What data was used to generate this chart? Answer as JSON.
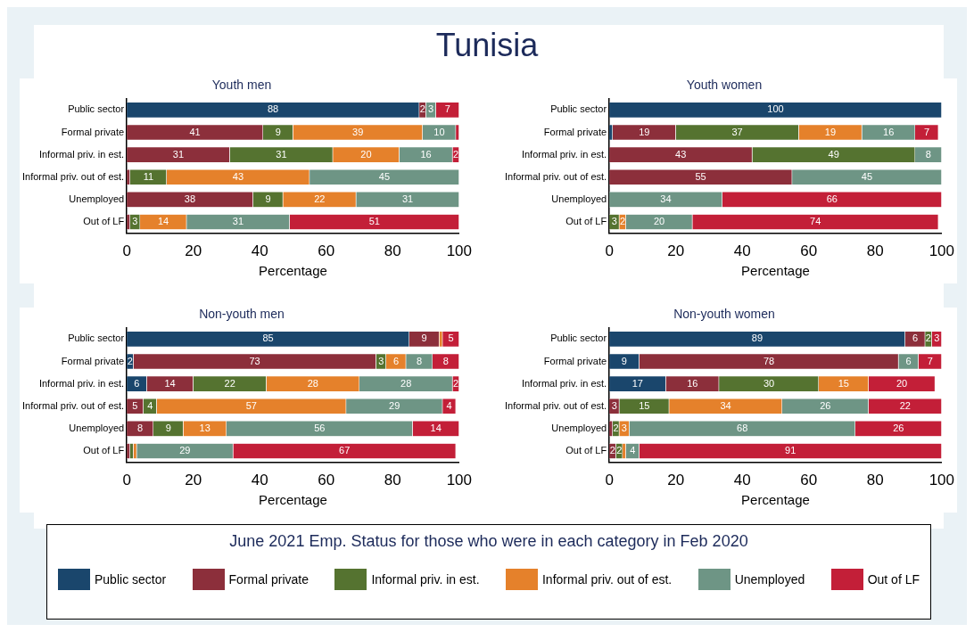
{
  "chart_data": [
    {
      "type": "bar",
      "orientation": "horizontal",
      "stacked": true,
      "title": "Youth men",
      "annotations": [
        "Tunisia"
      ],
      "xlabel": "Percentage",
      "legend": "bottom",
      "legend_title": "June 2021 Emp. Status for those who were in each category in Feb 2020",
      "grid": false,
      "xlim": [
        0,
        100
      ],
      "xticks": [
        0,
        20,
        40,
        60,
        80,
        100
      ],
      "categories": [
        "Public sector",
        "Formal private",
        "Informal priv. in est.",
        "Informal priv. out of est.",
        "Unemployed",
        "Out of LF"
      ],
      "series": [
        {
          "name": "Public sector",
          "color": "#1a466c",
          "values": [
            88,
            null,
            null,
            null,
            null,
            null
          ],
          "value_labels": [
            "88",
            null,
            null,
            null,
            null,
            null
          ]
        },
        {
          "name": "Formal private",
          "color": "#8c2f3b",
          "values": [
            2,
            41,
            31,
            1,
            38,
            1
          ],
          "value_labels": [
            "2",
            "41",
            "31",
            null,
            "38",
            null
          ]
        },
        {
          "name": "Informal priv. in est.",
          "color": "#557330",
          "values": [
            null,
            9,
            31,
            11,
            9,
            3
          ],
          "value_labels": [
            null,
            "9",
            "31",
            "11",
            "9",
            "3"
          ]
        },
        {
          "name": "Informal priv. out of est.",
          "color": "#e5812b",
          "values": [
            null,
            39,
            20,
            43,
            22,
            14
          ],
          "value_labels": [
            null,
            "39",
            "20",
            "43",
            "22",
            "14"
          ]
        },
        {
          "name": "Unemployed",
          "color": "#6e9585",
          "values": [
            3,
            10,
            16,
            45,
            31,
            31
          ],
          "value_labels": [
            "3",
            "10",
            "16",
            "45",
            "31",
            "31"
          ]
        },
        {
          "name": "Out of LF",
          "color": "#c31f38",
          "values": [
            7,
            1,
            2,
            null,
            null,
            51
          ],
          "value_labels": [
            "7",
            null,
            "2",
            null,
            null,
            "51"
          ]
        }
      ]
    },
    {
      "type": "bar",
      "orientation": "horizontal",
      "stacked": true,
      "title": "Youth women",
      "xlabel": "Percentage",
      "grid": false,
      "xlim": [
        0,
        100
      ],
      "xticks": [
        0,
        20,
        40,
        60,
        80,
        100
      ],
      "categories": [
        "Public sector",
        "Formal private",
        "Informal priv. in est.",
        "Informal priv. out of est.",
        "Unemployed",
        "Out of LF"
      ],
      "series": [
        {
          "color": "#1a466c",
          "values": [
            100,
            1,
            null,
            null,
            null,
            null
          ],
          "value_labels": [
            "100",
            null,
            null,
            null,
            null,
            null
          ]
        },
        {
          "color": "#8c2f3b",
          "values": [
            null,
            19,
            43,
            55,
            null,
            null
          ],
          "value_labels": [
            null,
            "19",
            "43",
            "55",
            null,
            null
          ]
        },
        {
          "color": "#557330",
          "values": [
            null,
            37,
            49,
            null,
            null,
            3
          ],
          "value_labels": [
            null,
            "37",
            "49",
            null,
            null,
            "3"
          ]
        },
        {
          "color": "#e5812b",
          "values": [
            null,
            19,
            null,
            null,
            null,
            2
          ],
          "value_labels": [
            null,
            "19",
            null,
            null,
            null,
            "2"
          ]
        },
        {
          "color": "#6e9585",
          "values": [
            null,
            16,
            8,
            45,
            34,
            20
          ],
          "value_labels": [
            null,
            "16",
            "8",
            "45",
            "34",
            "20"
          ]
        },
        {
          "color": "#c31f38",
          "values": [
            null,
            7,
            null,
            null,
            66,
            74
          ],
          "value_labels": [
            null,
            "7",
            null,
            null,
            "66",
            "74"
          ]
        }
      ]
    },
    {
      "type": "bar",
      "orientation": "horizontal",
      "stacked": true,
      "title": "Non-youth men",
      "xlabel": "Percentage",
      "grid": false,
      "xlim": [
        0,
        100
      ],
      "xticks": [
        0,
        20,
        40,
        60,
        80,
        100
      ],
      "categories": [
        "Public sector",
        "Formal private",
        "Informal priv. in est.",
        "Informal priv. out of est.",
        "Unemployed",
        "Out of LF"
      ],
      "series": [
        {
          "color": "#1a466c",
          "values": [
            85,
            2,
            6,
            null,
            null,
            null
          ],
          "value_labels": [
            "85",
            "2",
            "6",
            null,
            null,
            null
          ]
        },
        {
          "color": "#8c2f3b",
          "values": [
            9,
            73,
            14,
            5,
            8,
            1
          ],
          "value_labels": [
            "9",
            "73",
            "14",
            "5",
            "8",
            null
          ]
        },
        {
          "color": "#557330",
          "values": [
            null,
            3,
            22,
            4,
            9,
            1
          ],
          "value_labels": [
            null,
            "3",
            "22",
            "4",
            "9",
            null
          ]
        },
        {
          "color": "#e5812b",
          "values": [
            1,
            6,
            28,
            57,
            13,
            1
          ],
          "value_labels": [
            null,
            "6",
            "28",
            "57",
            "13",
            null
          ]
        },
        {
          "color": "#6e9585",
          "values": [
            null,
            8,
            28,
            29,
            56,
            29
          ],
          "value_labels": [
            null,
            "8",
            "28",
            "29",
            "56",
            "29"
          ]
        },
        {
          "color": "#c31f38",
          "values": [
            5,
            8,
            2,
            4,
            14,
            67
          ],
          "value_labels": [
            "5",
            "8",
            "2",
            "4",
            "14",
            "67"
          ]
        }
      ]
    },
    {
      "type": "bar",
      "orientation": "horizontal",
      "stacked": true,
      "title": "Non-youth women",
      "xlabel": "Percentage",
      "grid": false,
      "xlim": [
        0,
        100
      ],
      "xticks": [
        0,
        20,
        40,
        60,
        80,
        100
      ],
      "categories": [
        "Public sector",
        "Formal private",
        "Informal priv. in est.",
        "Informal priv. out of est.",
        "Unemployed",
        "Out of LF"
      ],
      "series": [
        {
          "color": "#1a466c",
          "values": [
            89,
            9,
            17,
            null,
            null,
            null
          ],
          "value_labels": [
            "89",
            "9",
            "17",
            null,
            null,
            null
          ]
        },
        {
          "color": "#8c2f3b",
          "values": [
            6,
            78,
            16,
            3,
            1,
            2
          ],
          "value_labels": [
            "6",
            "78",
            "16",
            "3",
            null,
            "2"
          ]
        },
        {
          "color": "#557330",
          "values": [
            2,
            null,
            30,
            15,
            2,
            2
          ],
          "value_labels": [
            "2",
            null,
            "30",
            "15",
            "2",
            "2"
          ]
        },
        {
          "color": "#e5812b",
          "values": [
            null,
            null,
            15,
            34,
            3,
            1
          ],
          "value_labels": [
            null,
            null,
            "15",
            "34",
            "3",
            null
          ]
        },
        {
          "color": "#6e9585",
          "values": [
            null,
            6,
            null,
            26,
            68,
            4
          ],
          "value_labels": [
            null,
            "6",
            null,
            "26",
            "68",
            "4"
          ]
        },
        {
          "color": "#c31f38",
          "values": [
            3,
            7,
            20,
            22,
            26,
            91
          ],
          "value_labels": [
            "3",
            "7",
            "20",
            "22",
            "26",
            "91"
          ]
        }
      ]
    }
  ]
}
